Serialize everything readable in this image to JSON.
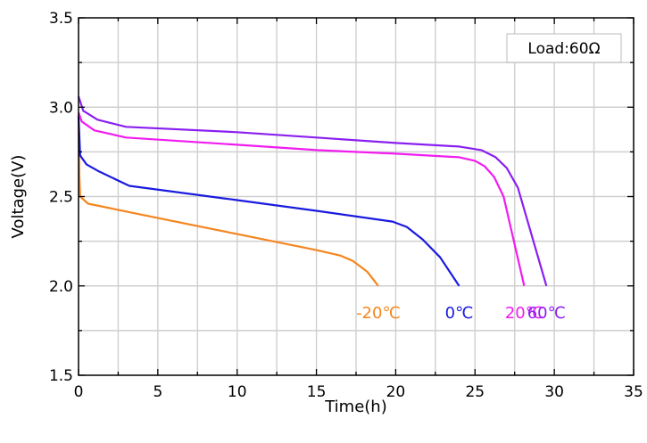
{
  "chart_data": {
    "type": "line",
    "xlabel": "Time(h)",
    "ylabel": "Voltage(V)",
    "xlim": [
      0,
      35
    ],
    "ylim": [
      1.5,
      3.5
    ],
    "x_ticks": [
      "0",
      "5",
      "10",
      "15",
      "20",
      "25",
      "30",
      "35"
    ],
    "y_ticks": [
      "1.5",
      "2.0",
      "2.5",
      "3.0",
      "3.5"
    ],
    "grid": true,
    "annotation": "Load:60Ω",
    "series": [
      {
        "name": "-20℃",
        "color": "#f5861f",
        "points": [
          [
            0,
            2.96
          ],
          [
            0.05,
            2.62
          ],
          [
            0.1,
            2.5
          ],
          [
            0.6,
            2.46
          ],
          [
            5,
            2.38
          ],
          [
            10,
            2.29
          ],
          [
            15,
            2.2
          ],
          [
            16.5,
            2.17
          ],
          [
            17.3,
            2.14
          ],
          [
            18.2,
            2.08
          ],
          [
            18.9,
            2.0
          ]
        ]
      },
      {
        "name": "0℃",
        "color": "#1a1ae0",
        "points": [
          [
            0,
            2.95
          ],
          [
            0.1,
            2.73
          ],
          [
            0.5,
            2.68
          ],
          [
            1.3,
            2.64
          ],
          [
            3.2,
            2.56
          ],
          [
            10,
            2.48
          ],
          [
            15,
            2.42
          ],
          [
            19.8,
            2.36
          ],
          [
            20.7,
            2.33
          ],
          [
            21.7,
            2.26
          ],
          [
            22.8,
            2.16
          ],
          [
            24,
            2.0
          ]
        ]
      },
      {
        "name": "20℃",
        "color": "#f01cf0",
        "points": [
          [
            0,
            2.97
          ],
          [
            0.2,
            2.92
          ],
          [
            1,
            2.87
          ],
          [
            3,
            2.83
          ],
          [
            10,
            2.79
          ],
          [
            15,
            2.76
          ],
          [
            20,
            2.74
          ],
          [
            24,
            2.72
          ],
          [
            25,
            2.7
          ],
          [
            25.6,
            2.67
          ],
          [
            26.2,
            2.61
          ],
          [
            26.8,
            2.5
          ],
          [
            28.1,
            2.0
          ]
        ]
      },
      {
        "name": "60℃",
        "color": "#8a1ff0",
        "points": [
          [
            0,
            3.06
          ],
          [
            0.3,
            2.98
          ],
          [
            1.2,
            2.93
          ],
          [
            3,
            2.89
          ],
          [
            10,
            2.86
          ],
          [
            15,
            2.83
          ],
          [
            20,
            2.8
          ],
          [
            24,
            2.78
          ],
          [
            25.4,
            2.76
          ],
          [
            26.3,
            2.72
          ],
          [
            27,
            2.66
          ],
          [
            27.7,
            2.55
          ],
          [
            29.5,
            2.0
          ]
        ]
      }
    ]
  }
}
